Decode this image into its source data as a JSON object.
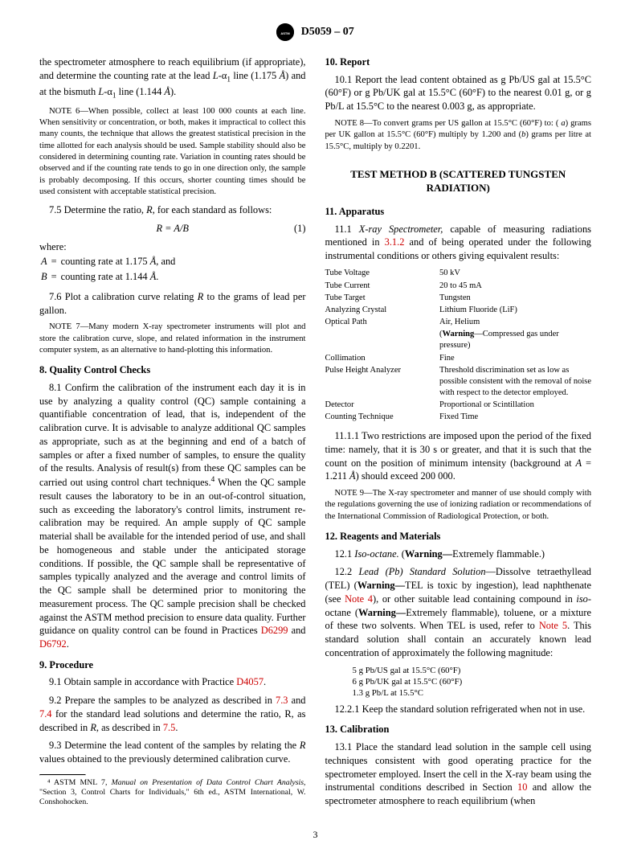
{
  "doc_number": "D5059 – 07",
  "page_number": "3",
  "link_color": "#cc0000",
  "body_fontsize": 12.4,
  "note_fontsize": 10.6,
  "heading_weight": "bold",
  "col1": {
    "intro": "the spectrometer atmosphere to reach equilibrium (if appropriate), and determine the counting rate at the lead L-α₁ line (1.175 Å) and at the bismuth L-α₁ line (1.144 Å).",
    "note6_label": "NOTE 6",
    "note6": "—When possible, collect at least 100 000 counts at each line. When sensitivity or concentration, or both, makes it impractical to collect this many counts, the technique that allows the greatest statistical precision in the time allotted for each analysis should be used. Sample stability should also be considered in determining counting rate. Variation in counting rates should be observed and if the counting rate tends to go in one direction only, the sample is probably decomposing. If this occurs, shorter counting times should be used consistent with acceptable statistical precision.",
    "p75": "7.5 Determine the ratio, R, for each standard as follows:",
    "eq1": "R = A/B",
    "eq1_num": "(1)",
    "where": "where:",
    "A_def_sym": "A",
    "A_def": "counting rate at 1.175 Å, and",
    "B_def_sym": "B",
    "B_def": "counting rate at 1.144 Å.",
    "p76": "7.6 Plot a calibration curve relating R to the grams of lead per gallon.",
    "note7_label": "NOTE 7",
    "note7": "—Many modern X-ray spectrometer instruments will plot and store the calibration curve, slope, and related information in the instrument computer system, as an alternative to hand-plotting this information.",
    "h8": "8. Quality Control Checks",
    "p81a": "8.1 Confirm the calibration of the instrument each day it is in use by analyzing a quality control (QC) sample containing a quantifiable concentration of lead, that is, independent of the calibration curve. It is advisable to analyze additional QC samples as appropriate, such as at the beginning and end of a batch of samples or after a fixed number of samples, to ensure the quality of the results. Analysis of result(s) from these QC samples can be carried out using control chart techniques.",
    "fn4_mark": "4",
    "p81b": " When the QC sample result causes the laboratory to be in an out-of-control situation, such as exceeding the laboratory's control limits, instrument re-calibration may be required. An ample supply of QC sample material shall be available for the intended period of use, and shall be homogeneous and stable under the anticipated storage conditions. If possible, the QC sample shall be representative of samples typically analyzed and the average and control limits of the QC sample shall be determined prior to monitoring the measurement process. The QC sample precision shall be checked against the ASTM method precision to ensure data quality. Further guidance on quality control can be found in Practices ",
    "link_D6299": "D6299",
    "p81c": " and ",
    "link_D6792": "D6792",
    "p81d": ".",
    "h9": "9. Procedure",
    "p91a": "9.1 Obtain sample in accordance with Practice ",
    "link_D4057": "D4057",
    "p91b": ".",
    "p92a": "9.2 Prepare the samples to be analyzed as described in ",
    "link_73": "7.3",
    "p92b": " and ",
    "link_74": "7.4",
    "p92c": " for the standard lead solutions and determine the ratio, R, as described in ",
    "link_75": "7.5",
    "p92d": ".",
    "p93": "9.3 Determine the lead content of the samples by relating the R values obtained to the previously determined calibration curve.",
    "fn4": "⁴ ASTM MNL 7, Manual on Presentation of Data Control Chart Analysis, \"Section 3, Control Charts for Individuals,\" 6th ed., ASTM International, W. Conshohocken."
  },
  "col2": {
    "h10": "10. Report",
    "p101": "10.1 Report the lead content obtained as g Pb/US gal at 15.5°C (60°F) or g Pb/UK gal at 15.5°C (60°F) to the nearest 0.01 g, or g Pb/L at 15.5°C to the nearest 0.003 g, as appropriate.",
    "note8_label": "NOTE 8",
    "note8": "—To convert grams per US gallon at 15.5°C (60°F) to: ( a) grams per UK gallon at 15.5°C (60°F) multiply by 1.200 and (b) grams per litre at 15.5°C, multiply by 0.2201.",
    "method_b": "TEST METHOD B (SCATTERED TUNGSTEN RADIATION)",
    "h11": "11. Apparatus",
    "p111a": "11.1 X-ray Spectrometer, capable of measuring radiations mentioned in ",
    "link_312": "3.1.2",
    "p111b": " and of being operated under the following instrumental conditions or others giving equivalent results:",
    "instr_table": [
      [
        "Tube Voltage",
        "50 kV"
      ],
      [
        "Tube Current",
        "20 to 45 mA"
      ],
      [
        "Tube Target",
        "Tungsten"
      ],
      [
        "Analyzing Crystal",
        "Lithium Fluoride (LiF)"
      ],
      [
        "Optical Path",
        "Air, Helium"
      ],
      [
        "",
        "(Warning—Compressed gas under pressure)"
      ],
      [
        "Collimation",
        "Fine"
      ],
      [
        "Pulse Height Analyzer",
        "Threshold discrimination set as low as possible consistent with the removal of noise with respect to the detector employed."
      ],
      [
        "Detector",
        "Proportional or Scintillation"
      ],
      [
        "Counting Technique",
        "Fixed Time"
      ]
    ],
    "p1111": "11.1.1 Two restrictions are imposed upon the period of the fixed time: namely, that it is 30 s or greater, and that it is such that the count on the position of minimum intensity (background at A = 1.211 Å) should exceed 200 000.",
    "note9_label": "NOTE 9",
    "note9": "—The X-ray spectrometer and manner of use should comply with the regulations governing the use of ionizing radiation or recommendations of the International Commission of Radiological Protection, or both.",
    "h12": "12. Reagents and Materials",
    "p121": "12.1 Iso-octane. (Warning—Extremely flammable.)",
    "p122a": "12.2 Lead (Pb) Standard Solution—Dissolve tetraethyllead (TEL) (Warning—TEL is toxic by ingestion), lead naphthenate (see ",
    "link_note4": "Note 4",
    "p122b": "), or other suitable lead containing compound in iso-octane (Warning—Extremely flammable), toluene, or a mixture of these two solvents. When TEL is used, refer to ",
    "link_note5": "Note 5",
    "p122c": ". This standard solution shall contain an accurately known lead concentration of approximately the following magnitude:",
    "conc_list": [
      "5 g Pb/US gal at 15.5°C (60°F)",
      "6 g Pb/UK gal at 15.5°C (60°F)",
      "1.3 g Pb/L at 15.5°C"
    ],
    "p1221": "12.2.1 Keep the standard solution refrigerated when not in use.",
    "h13": "13. Calibration",
    "p131a": "13.1 Place the standard lead solution in the sample cell using techniques consistent with good operating practice for the spectrometer employed. Insert the cell in the X-ray beam using the instrumental conditions described in Section ",
    "link_10": "10",
    "p131b": " and allow the spectrometer atmosphere to reach equilibrium (when"
  }
}
